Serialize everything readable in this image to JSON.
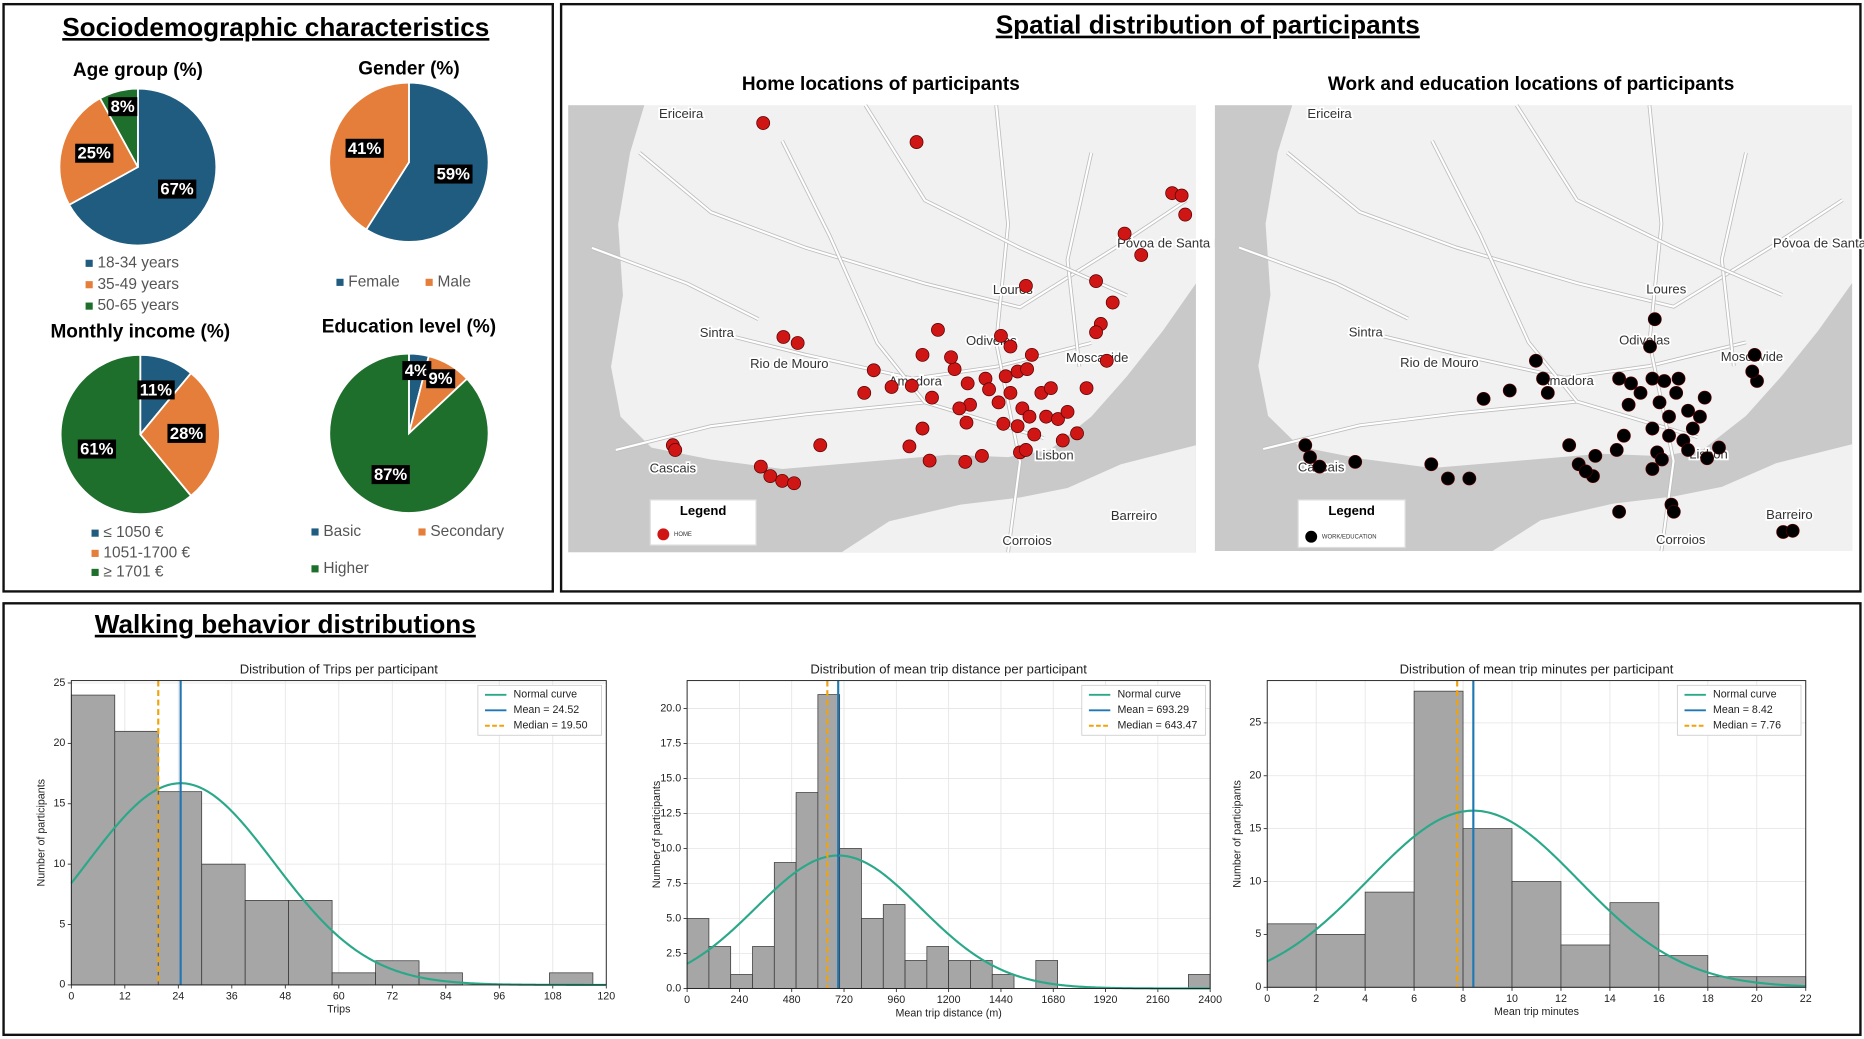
{
  "sections": {
    "sociodemographic": "Sociodemographic characteristics",
    "spatial": "Spatial distribution of participants",
    "walking": "Walking behavior distributions"
  },
  "chart_data": [
    {
      "type": "pie",
      "title": "Age group (%)",
      "categories": [
        "18-34 years",
        "35-49 years",
        "50-65 years"
      ],
      "values": [
        67,
        25,
        8
      ],
      "value_labels": [
        "67%",
        "25%",
        "8%"
      ],
      "colors": [
        "#1f5c80",
        "#e57e3a",
        "#1e6e2c"
      ]
    },
    {
      "type": "pie",
      "title": "Gender (%)",
      "categories": [
        "Female",
        "Male"
      ],
      "values": [
        59,
        41
      ],
      "value_labels": [
        "59%",
        "41%"
      ],
      "colors": [
        "#1f5c80",
        "#e57e3a"
      ]
    },
    {
      "type": "pie",
      "title": "Monthly income (%)",
      "categories": [
        "≤ 1050 €",
        "1051-1700 €",
        "≥ 1701 €"
      ],
      "values": [
        11,
        28,
        61
      ],
      "value_labels": [
        "11%",
        "28%",
        "61%"
      ],
      "colors": [
        "#1f5c80",
        "#e57e3a",
        "#1e6e2c"
      ]
    },
    {
      "type": "pie",
      "title": "Education level (%)",
      "categories": [
        "Basic",
        "Secondary",
        "Higher"
      ],
      "values": [
        4,
        9,
        87
      ],
      "value_labels": [
        "4%",
        "9%",
        "87%"
      ],
      "colors": [
        "#1f5c80",
        "#e57e3a",
        "#1e6e2c"
      ]
    },
    {
      "type": "histogram",
      "title": "Distribution of Trips per participant",
      "xlabel": "Trips",
      "ylabel": "Number of participants",
      "bins": [
        0,
        9.75,
        19.5,
        29.25,
        39,
        48.75,
        58.5,
        68.25,
        78,
        87.75,
        97.5,
        107.25,
        117
      ],
      "values": [
        24,
        21,
        16,
        10,
        7,
        7,
        1,
        2,
        1,
        0,
        0,
        1
      ],
      "color": "#a6a6a6",
      "xlim": [
        0,
        120
      ],
      "ylim": [
        0,
        25.2
      ],
      "xticks": [
        0,
        12,
        24,
        36,
        48,
        60,
        72,
        84,
        96,
        108,
        120
      ],
      "yticks": [
        0,
        5,
        10,
        15,
        20,
        25
      ],
      "grid": true,
      "legend": "upper right",
      "normal_curve": {
        "name": "Normal curve",
        "color": "#2aa889",
        "peak": 16.7,
        "sd": 20.96
      },
      "lines": [
        {
          "name": "Mean = 24.52",
          "value": 24.52,
          "color": "#1f77b4",
          "style": "solid"
        },
        {
          "name": "Median = 19.50",
          "value": 19.5,
          "color": "#f0a30a",
          "style": "dashed"
        }
      ]
    },
    {
      "type": "histogram",
      "title": "Distribution of mean trip distance per participant",
      "xlabel": "Mean trip distance (m)",
      "ylabel": "Number of participants",
      "bins": [
        0,
        100,
        200,
        300,
        400,
        500,
        600,
        700,
        800,
        900,
        1000,
        1100,
        1200,
        1300,
        1400,
        1500,
        1600,
        1700,
        1800,
        1900,
        2000,
        2100,
        2200,
        2300,
        2400
      ],
      "values": [
        5,
        3,
        1,
        3,
        9,
        14,
        21,
        10,
        5,
        6,
        2,
        3,
        2,
        2,
        1,
        0,
        2,
        0,
        0,
        0,
        0,
        0,
        0,
        1
      ],
      "color": "#a6a6a6",
      "xlim": [
        0,
        2400
      ],
      "ylim": [
        0,
        22
      ],
      "xticks": [
        0,
        240,
        480,
        720,
        960,
        1200,
        1440,
        1680,
        1920,
        2160,
        2400
      ],
      "yticks": [
        {
          "value": 0,
          "label": "0.0"
        },
        2.5,
        {
          "value": 5,
          "label": "5.0"
        },
        7.5,
        {
          "value": 10,
          "label": "10.0"
        },
        12.5,
        {
          "value": 15,
          "label": "15.0"
        },
        17.5,
        {
          "value": 20,
          "label": "20.0"
        }
      ],
      "grid": true,
      "legend": "upper right",
      "normal_curve": {
        "name": "Normal curve",
        "color": "#2aa889",
        "peak": 9.5,
        "sd": 378
      },
      "lines": [
        {
          "name": "Mean = 693.29",
          "value": 693.29,
          "color": "#1f77b4",
          "style": "solid"
        },
        {
          "name": "Median = 643.47",
          "value": 643.47,
          "color": "#f0a30a",
          "style": "dashed"
        }
      ]
    },
    {
      "type": "histogram",
      "title": "Distribution of mean trip minutes per participant",
      "xlabel": "Mean trip minutes",
      "ylabel": "Number of participants",
      "bins": [
        0,
        2,
        4,
        6,
        8,
        10,
        12,
        14,
        16,
        18,
        20,
        22
      ],
      "values": [
        6,
        5,
        9,
        28,
        15,
        10,
        4,
        8,
        3,
        1,
        1
      ],
      "color": "#a6a6a6",
      "xlim": [
        0,
        22
      ],
      "ylim": [
        0,
        29
      ],
      "xticks": [
        0,
        2,
        4,
        6,
        8,
        10,
        12,
        14,
        16,
        18,
        20,
        22
      ],
      "yticks": [
        0,
        5,
        10,
        15,
        20,
        25
      ],
      "grid": true,
      "legend": "upper right",
      "normal_curve": {
        "name": "Normal curve",
        "color": "#2aa889",
        "peak": 16.7,
        "sd": 4.3
      },
      "lines": [
        {
          "name": "Mean = 8.42",
          "value": 8.42,
          "color": "#1f77b4",
          "style": "solid"
        },
        {
          "name": "Median = 7.76",
          "value": 7.76,
          "color": "#f0a30a",
          "style": "dashed"
        }
      ]
    }
  ],
  "maps": [
    {
      "title": "Home locations of participants",
      "places": [
        "Ericeira",
        "Sintra",
        "Rio de Mouro",
        "Amadora",
        "Odivelas",
        "Loures",
        "Póvoa de Santa Iria",
        "Moscavide",
        "Lisbon",
        "Cascais",
        "Barreiro",
        "Corroios"
      ],
      "legend_title": "Legend",
      "legend_entry": "HOME",
      "marker_color": "#d01515"
    },
    {
      "title": "Work and education locations of participants",
      "places": [
        "Ericeira",
        "Sintra",
        "Rio de Mouro",
        "Amadora",
        "Odivelas",
        "Loures",
        "Póvoa de Santa Iria",
        "Moscavide",
        "Lisbon",
        "Cascais",
        "Barreiro",
        "Corroios"
      ],
      "legend_title": "Legend",
      "legend_entry": "WORK/EDUCATION",
      "marker_color": "#000000"
    }
  ]
}
